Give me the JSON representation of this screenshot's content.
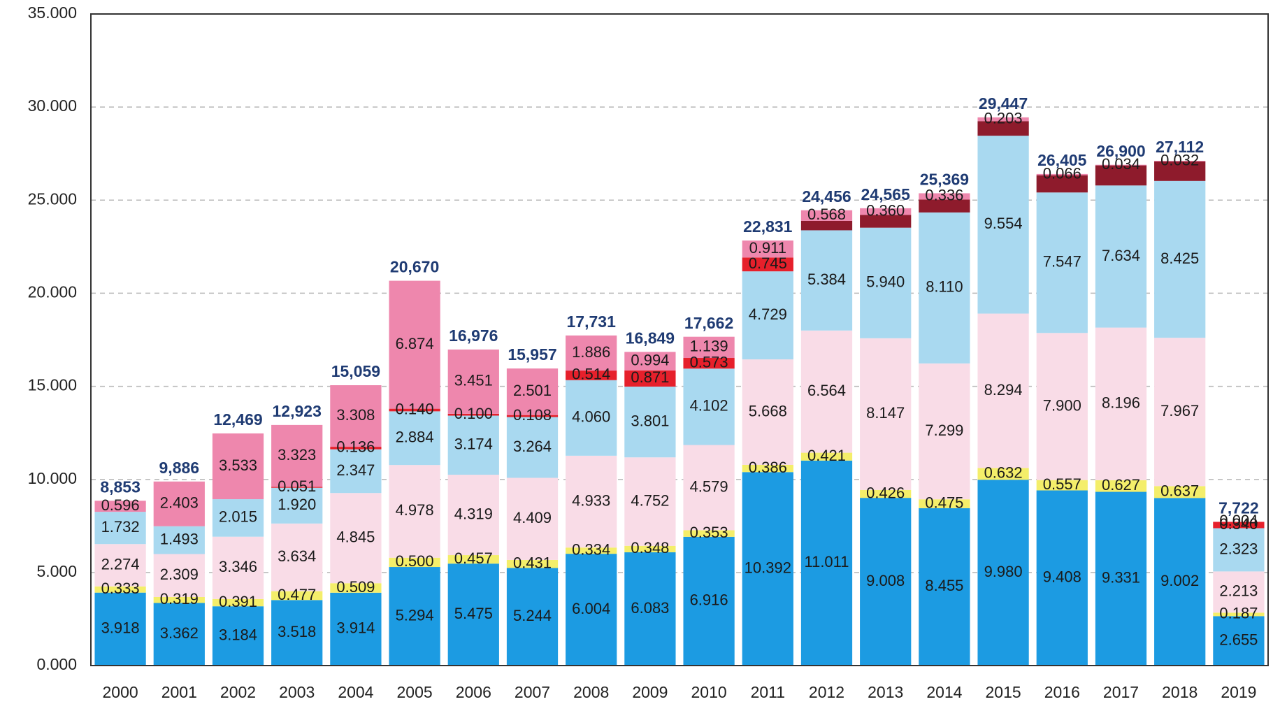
{
  "chart_data": {
    "type": "stacked_bar",
    "categories": [
      "2000",
      "2001",
      "2002",
      "2003",
      "2004",
      "2005",
      "2006",
      "2007",
      "2008",
      "2009",
      "2010",
      "2011",
      "2012",
      "2013",
      "2014",
      "2015",
      "2016",
      "2017",
      "2018",
      "2019"
    ],
    "ylim": [
      0,
      35
    ],
    "yticks": [
      {
        "value": 0,
        "label": "0.000"
      },
      {
        "value": 5,
        "label": "5.000"
      },
      {
        "value": 10,
        "label": "10.000"
      },
      {
        "value": 15,
        "label": "15.000"
      },
      {
        "value": 20,
        "label": "20.000"
      },
      {
        "value": 25,
        "label": "25.000"
      },
      {
        "value": 30,
        "label": "30.000"
      },
      {
        "value": 35,
        "label": "35.000"
      }
    ],
    "grid": true,
    "series": [
      {
        "color": "#1c9be2",
        "values": [
          3.918,
          3.362,
          3.184,
          3.518,
          3.914,
          5.294,
          5.475,
          5.244,
          6.004,
          6.083,
          6.916,
          10.392,
          11.011,
          9.008,
          8.455,
          9.98,
          9.408,
          9.331,
          9.002,
          2.655
        ],
        "value_labels": [
          "3.918",
          "3.362",
          "3.184",
          "3.518",
          "3.914",
          "5.294",
          "5.475",
          "5.244",
          "6.004",
          "6.083",
          "6.916",
          "10.392",
          "11.011",
          "9.008",
          "8.455",
          "9.980",
          "9.408",
          "9.331",
          "9.002",
          "2.655"
        ]
      },
      {
        "color": "#f4ee6a",
        "values": [
          0.333,
          0.319,
          0.391,
          0.477,
          0.509,
          0.5,
          0.457,
          0.431,
          0.334,
          0.348,
          0.353,
          0.386,
          0.421,
          0.426,
          0.475,
          0.632,
          0.557,
          0.627,
          0.637,
          0.187
        ],
        "value_labels": [
          "0.333",
          "0.319",
          "0.391",
          "0.477",
          "0.509",
          "0.500",
          "0.457",
          "0.431",
          "0.334",
          "0.348",
          "0.353",
          "0.386",
          "0.421",
          "0.426",
          "0.475",
          "0.632",
          "0.557",
          "0.627",
          "0.637",
          "0.187"
        ]
      },
      {
        "color": "#f9dce7",
        "values": [
          2.274,
          2.309,
          3.346,
          3.634,
          4.845,
          4.978,
          4.319,
          4.409,
          4.933,
          4.752,
          4.579,
          5.668,
          6.564,
          8.147,
          7.299,
          8.294,
          7.9,
          8.196,
          7.967,
          2.213
        ],
        "value_labels": [
          "2.274",
          "2.309",
          "3.346",
          "3.634",
          "4.845",
          "4.978",
          "4.319",
          "4.409",
          "4.933",
          "4.752",
          "4.579",
          "5.668",
          "6.564",
          "8.147",
          "7.299",
          "8.294",
          "7.900",
          "8.196",
          "7.967",
          "2.213"
        ]
      },
      {
        "color": "#a9d9f0",
        "values": [
          1.732,
          1.493,
          2.015,
          1.92,
          2.347,
          2.884,
          3.174,
          3.264,
          4.06,
          3.801,
          4.102,
          4.729,
          5.384,
          5.94,
          8.11,
          9.554,
          7.547,
          7.634,
          8.425,
          2.323
        ],
        "value_labels": [
          "1.732",
          "1.493",
          "2.015",
          "1.920",
          "2.347",
          "2.884",
          "3.174",
          "3.264",
          "4.060",
          "3.801",
          "4.102",
          "4.729",
          "5.384",
          "5.940",
          "8.110",
          "9.554",
          "7.547",
          "7.634",
          "8.425",
          "2.323"
        ]
      },
      {
        "color": "#e6202b",
        "values": [
          null,
          null,
          null,
          0.051,
          0.136,
          0.14,
          0.1,
          0.108,
          0.514,
          0.871,
          0.573,
          0.745,
          null,
          null,
          null,
          null,
          null,
          null,
          null,
          0.34
        ],
        "value_labels": [
          null,
          null,
          null,
          "0.051",
          "0.136",
          "0.140",
          "0.100",
          "0.108",
          "0.514",
          "0.871",
          "0.573",
          "0.745",
          null,
          null,
          null,
          null,
          null,
          null,
          null,
          "0.340"
        ]
      },
      {
        "color": "#8e1b2c",
        "values": [
          null,
          null,
          null,
          null,
          null,
          null,
          null,
          null,
          null,
          null,
          null,
          null,
          0.508,
          0.684,
          0.694,
          0.784,
          0.927,
          1.078,
          1.049,
          null
        ]
      },
      {
        "color": "#ee87ad",
        "values": [
          0.596,
          2.403,
          3.533,
          3.323,
          3.308,
          6.874,
          3.451,
          2.501,
          1.886,
          0.994,
          1.139,
          0.911,
          0.568,
          0.36,
          0.336,
          0.203,
          0.066,
          0.034,
          0.032,
          0.004
        ],
        "value_labels": [
          "0.596",
          "2.403",
          "3.533",
          "3.323",
          "3.308",
          "6.874",
          "3.451",
          "2.501",
          "1.886",
          "0.994",
          "1.139",
          "0.911",
          "0.568",
          "0.360",
          "0.336",
          "0.203",
          "0.066",
          "0.034",
          "0.032",
          "0.004"
        ]
      }
    ],
    "totals": {
      "values": [
        8.853,
        9.886,
        12.469,
        12.923,
        15.059,
        20.67,
        16.976,
        15.957,
        17.731,
        16.849,
        17.662,
        22.831,
        24.456,
        24.565,
        25.369,
        29.447,
        26.405,
        26.9,
        27.112,
        7.722
      ],
      "value_labels": [
        "8,853",
        "9,886",
        "12,469",
        "12,923",
        "15,059",
        "20,670",
        "16,976",
        "15,957",
        "17,731",
        "16,849",
        "17,662",
        "22,831",
        "24,456",
        "24,565",
        "25,369",
        "29,447",
        "26,405",
        "26,900",
        "27,112",
        "7,722"
      ]
    }
  }
}
